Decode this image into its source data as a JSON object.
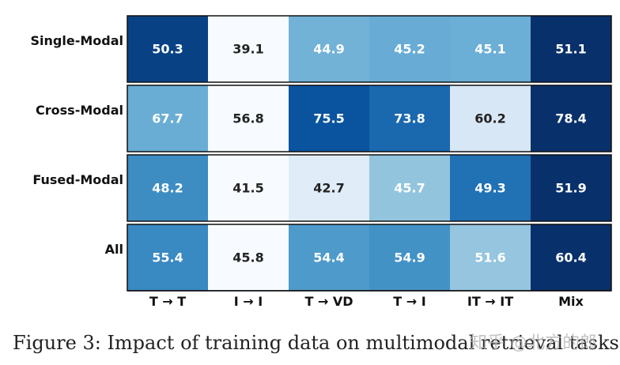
{
  "chart_data": {
    "type": "heatmap",
    "rows": [
      "Single-Modal",
      "Cross-Modal",
      "Fused-Modal",
      "All"
    ],
    "columns": [
      "T → T",
      "I → I",
      "T → VD",
      "T → I",
      "IT → IT",
      "Mix"
    ],
    "values": [
      [
        50.3,
        39.1,
        44.9,
        45.2,
        45.1,
        51.1
      ],
      [
        67.7,
        56.8,
        75.5,
        73.8,
        60.2,
        78.4
      ],
      [
        48.2,
        41.5,
        42.7,
        45.7,
        49.3,
        51.9
      ],
      [
        55.4,
        45.8,
        54.4,
        54.9,
        51.6,
        60.4
      ]
    ],
    "colormap": "Blues",
    "color_scale": "per-row"
  },
  "caption": "Figure 3: Impact of training data on multimodal retrieval tasks.",
  "watermark": "知乎 @北方的郎",
  "colors": {
    "light_cell": "#f7fbff",
    "dark_cell": "#08306b",
    "text_dark": "#222222",
    "text_light": "#ffffff"
  }
}
